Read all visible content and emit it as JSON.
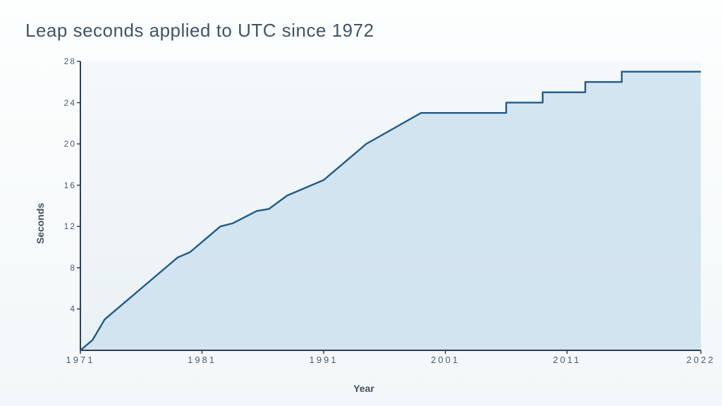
{
  "chart": {
    "type": "step-area-line",
    "title": "Leap seconds applied to UTC since 1972",
    "title_fontsize": 26,
    "title_color": "#415464",
    "xlabel": "Year",
    "ylabel": "Seconds",
    "label_fontsize": 14,
    "label_color": "#3f5161",
    "tick_fontsize": 12,
    "tick_color": "#4a5d6c",
    "background_gradient_top": "#fdfefe",
    "background_gradient_bottom": "#f3f7f9",
    "plot_background_top": "#f4f8fa",
    "plot_background_bottom": "#eaf1f5",
    "line_color": "#205a8a",
    "line_width": 2.4,
    "fill_color": "#cfe2ef",
    "fill_opacity": 0.9,
    "axis_color": "#2f4150",
    "axis_width": 2,
    "xlim": [
      1971,
      2022
    ],
    "ylim": [
      0,
      28
    ],
    "ytick_step": 4,
    "yticks": [
      4,
      8,
      12,
      16,
      20,
      24,
      28
    ],
    "xticks": [
      1971,
      1981,
      1991,
      2001,
      2011,
      2022
    ],
    "data": [
      {
        "year": 1971.0,
        "seconds": 0
      },
      {
        "year": 1972.0,
        "seconds": 1
      },
      {
        "year": 1972.5,
        "seconds": 2
      },
      {
        "year": 1973.0,
        "seconds": 3
      },
      {
        "year": 1974.0,
        "seconds": 4
      },
      {
        "year": 1975.0,
        "seconds": 5
      },
      {
        "year": 1976.0,
        "seconds": 6
      },
      {
        "year": 1977.0,
        "seconds": 7
      },
      {
        "year": 1978.0,
        "seconds": 8
      },
      {
        "year": 1979.0,
        "seconds": 9
      },
      {
        "year": 1980.0,
        "seconds": 9.5
      },
      {
        "year": 1981.5,
        "seconds": 11
      },
      {
        "year": 1982.5,
        "seconds": 12
      },
      {
        "year": 1983.5,
        "seconds": 12.3
      },
      {
        "year": 1985.5,
        "seconds": 13.5
      },
      {
        "year": 1986.5,
        "seconds": 13.7
      },
      {
        "year": 1988.0,
        "seconds": 15
      },
      {
        "year": 1990.0,
        "seconds": 16
      },
      {
        "year": 1991.0,
        "seconds": 16.5
      },
      {
        "year": 1992.5,
        "seconds": 18
      },
      {
        "year": 1993.5,
        "seconds": 19
      },
      {
        "year": 1994.5,
        "seconds": 20
      },
      {
        "year": 1996.0,
        "seconds": 21
      },
      {
        "year": 1997.5,
        "seconds": 22
      },
      {
        "year": 1999.0,
        "seconds": 23
      },
      {
        "year": 2006.0,
        "seconds": 23
      },
      {
        "year": 2006.0,
        "seconds": 24
      },
      {
        "year": 2009.0,
        "seconds": 24
      },
      {
        "year": 2009.0,
        "seconds": 25
      },
      {
        "year": 2012.5,
        "seconds": 25
      },
      {
        "year": 2012.5,
        "seconds": 26
      },
      {
        "year": 2015.5,
        "seconds": 26
      },
      {
        "year": 2015.5,
        "seconds": 27
      },
      {
        "year": 2022.0,
        "seconds": 27
      }
    ]
  }
}
